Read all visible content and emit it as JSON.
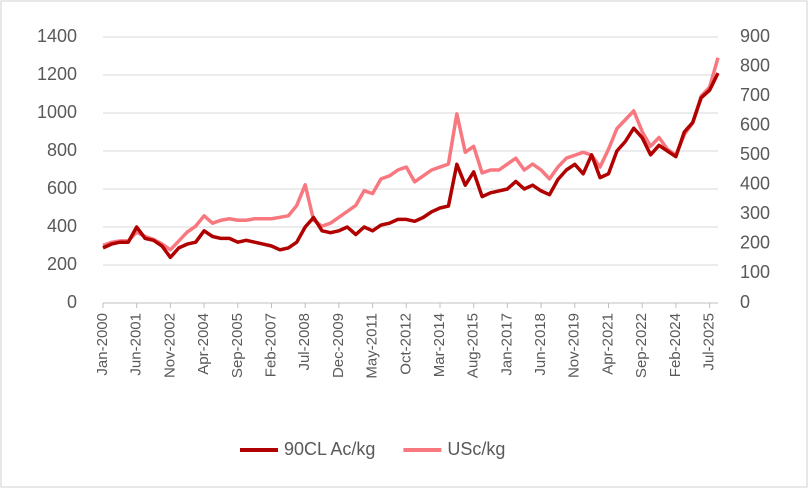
{
  "chart_data": {
    "type": "line",
    "categories": [
      "Jan-2000",
      null,
      null,
      null,
      "Jun-2001",
      null,
      null,
      null,
      "Nov-2002",
      null,
      null,
      null,
      "Apr-2004",
      null,
      null,
      null,
      "Sep-2005",
      null,
      null,
      null,
      "Feb-2007",
      null,
      null,
      null,
      "Jul-2008",
      null,
      null,
      null,
      "Dec-2009",
      null,
      null,
      null,
      "May-2011",
      null,
      null,
      null,
      "Oct-2012",
      null,
      null,
      null,
      "Mar-2014",
      null,
      null,
      null,
      "Aug-2015",
      null,
      null,
      null,
      "Jan-2017",
      null,
      null,
      null,
      "Jun-2018",
      null,
      null,
      null,
      "Nov-2019",
      null,
      null,
      null,
      "Apr-2021",
      null,
      null,
      null,
      "Sep-2022",
      null,
      null,
      null,
      "Feb-2024",
      null,
      null,
      null,
      "Jul-2025",
      null
    ],
    "series": [
      {
        "name": "90CL Ac/kg",
        "color": "#b00000",
        "axis": "y",
        "values": [
          290,
          310,
          320,
          320,
          400,
          340,
          330,
          300,
          240,
          290,
          310,
          320,
          380,
          350,
          340,
          340,
          320,
          330,
          320,
          310,
          300,
          280,
          290,
          320,
          400,
          450,
          380,
          370,
          380,
          400,
          360,
          400,
          380,
          410,
          420,
          440,
          440,
          430,
          450,
          480,
          500,
          510,
          730,
          620,
          690,
          560,
          580,
          590,
          600,
          640,
          600,
          620,
          590,
          570,
          650,
          700,
          730,
          680,
          780,
          660,
          680,
          800,
          850,
          920,
          870,
          780,
          830,
          800,
          770,
          900,
          950,
          1080,
          1120,
          1210
        ]
      },
      {
        "name": "USc/kg",
        "color": "#f87880",
        "axis": "y2",
        "values": [
          195,
          205,
          210,
          210,
          240,
          225,
          215,
          200,
          180,
          210,
          240,
          260,
          295,
          270,
          280,
          285,
          280,
          280,
          285,
          285,
          285,
          290,
          295,
          330,
          400,
          280,
          260,
          270,
          290,
          310,
          330,
          380,
          370,
          420,
          430,
          450,
          460,
          410,
          430,
          450,
          460,
          470,
          640,
          510,
          530,
          440,
          450,
          450,
          470,
          490,
          450,
          470,
          450,
          420,
          460,
          490,
          500,
          510,
          500,
          460,
          520,
          590,
          620,
          650,
          580,
          530,
          560,
          520,
          500,
          570,
          610,
          700,
          730,
          830
        ]
      }
    ],
    "ylim": [
      0,
      1400
    ],
    "yticks": [
      0,
      200,
      400,
      600,
      800,
      1000,
      1200,
      1400
    ],
    "y2lim": [
      0,
      900
    ],
    "y2ticks": [
      0,
      100,
      200,
      300,
      400,
      500,
      600,
      700,
      800,
      900
    ],
    "grid": true,
    "legend": "bottom"
  }
}
